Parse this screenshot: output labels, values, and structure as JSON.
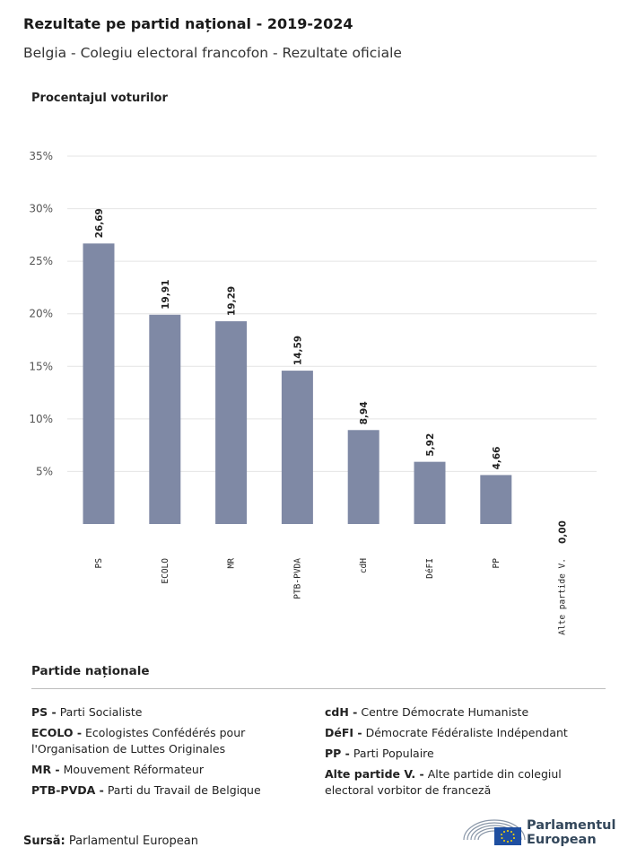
{
  "header": {
    "title": "Rezultate pe partid național - 2019-2024",
    "subtitle": "Belgia - Colegiu electoral francofon - Rezultate oficiale"
  },
  "chart_data": {
    "type": "bar",
    "ylabel": "Procentajul voturilor",
    "categories": [
      "PS",
      "ECOLO",
      "MR",
      "PTB-PVDA",
      "cdH",
      "DéFI",
      "PP",
      "Alte partide V."
    ],
    "values": [
      26.69,
      19.91,
      19.29,
      14.59,
      8.94,
      5.92,
      4.66,
      0.0
    ],
    "value_labels": [
      "26,69",
      "19,91",
      "19,29",
      "14,59",
      "8,94",
      "5,92",
      "4,66",
      "0,00"
    ],
    "yticks": [
      "35%",
      "30%",
      "25%",
      "20%",
      "15%",
      "10%",
      "5%"
    ],
    "ytick_values": [
      35,
      30,
      25,
      20,
      15,
      10,
      5
    ],
    "ylim": [
      0,
      35
    ],
    "grid": true,
    "bar_color": "#7f89a5"
  },
  "legend": {
    "title": "Partide naționale",
    "left": [
      {
        "abbr": "PS -",
        "name": "Parti Socialiste"
      },
      {
        "abbr": "ECOLO -",
        "name": "Ecologistes Confédérés pour l'Organisation de Luttes Originales"
      },
      {
        "abbr": "MR -",
        "name": "Mouvement Réformateur"
      },
      {
        "abbr": "PTB-PVDA -",
        "name": "Parti du Travail de Belgique"
      }
    ],
    "right": [
      {
        "abbr": "cdH -",
        "name": "Centre Démocrate Humaniste"
      },
      {
        "abbr": "DéFI -",
        "name": "Démocrate Fédéraliste Indépendant"
      },
      {
        "abbr": "PP -",
        "name": "Parti Populaire"
      },
      {
        "abbr": "Alte partide V. -",
        "name": "Alte partide din colegiul electoral vorbitor de franceză"
      }
    ]
  },
  "footer": {
    "source_label": "Sursă:",
    "source_value": "Parlamentul European",
    "logo_line1": "Parlamentul",
    "logo_line2": "European",
    "logo_icon": "european-parliament-logo"
  }
}
